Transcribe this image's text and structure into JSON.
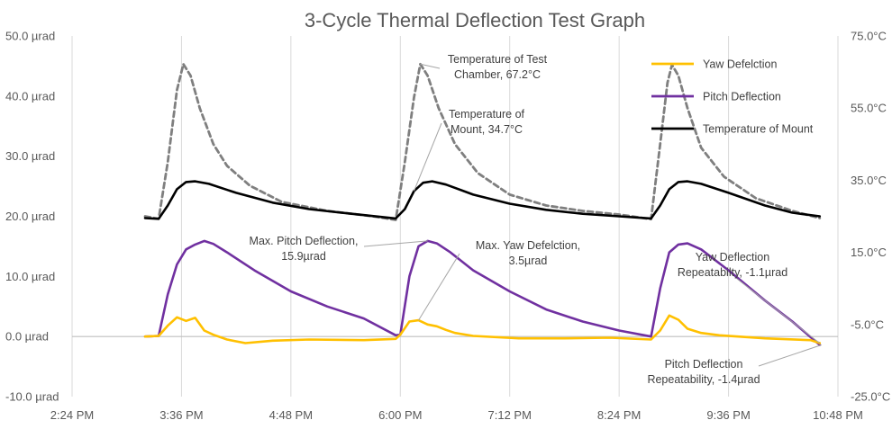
{
  "chart_data": {
    "type": "line",
    "title": "3-Cycle Thermal Deflection Test Graph",
    "x_ticks": [
      "2:24 PM",
      "3:36 PM",
      "4:48 PM",
      "6:00 PM",
      "7:12 PM",
      "8:24 PM",
      "9:36 PM",
      "10:48 PM"
    ],
    "x_range_hours": [
      14.4,
      22.8
    ],
    "y_left": {
      "range": [
        -10,
        50
      ],
      "unit": "µrad",
      "ticks": [
        "-10.0 µrad",
        "0.0 µrad",
        "10.0 µrad",
        "20.0 µrad",
        "30.0 µrad",
        "40.0 µrad",
        "50.0 µrad"
      ]
    },
    "y_right": {
      "range": [
        -25,
        75
      ],
      "unit": "°C",
      "ticks": [
        "-25.0°C",
        "-5.0°C",
        "15.0°C",
        "35.0°C",
        "55.0°C",
        "75.0°C"
      ]
    },
    "grid": "vertical",
    "legend_position": "top-right",
    "legend": [
      {
        "label": "Yaw Defelction",
        "color": "#FFC000",
        "dash": false
      },
      {
        "label": "Pitch Deflection",
        "color": "#7030A0",
        "dash": false
      },
      {
        "label": "Temperature of Mount",
        "color": "#000000",
        "dash": false
      }
    ],
    "series": [
      {
        "name": "Yaw Defelction",
        "axis": "left",
        "color": "#FFC000",
        "points": [
          [
            15.2,
            0
          ],
          [
            15.35,
            0.1
          ],
          [
            15.45,
            1.8
          ],
          [
            15.55,
            3.2
          ],
          [
            15.65,
            2.6
          ],
          [
            15.75,
            3.1
          ],
          [
            15.85,
            1.0
          ],
          [
            15.95,
            0.3
          ],
          [
            16.1,
            -0.5
          ],
          [
            16.3,
            -1.1
          ],
          [
            16.6,
            -0.7
          ],
          [
            17.0,
            -0.5
          ],
          [
            17.6,
            -0.6
          ],
          [
            17.95,
            -0.4
          ],
          [
            18.0,
            0.3
          ],
          [
            18.1,
            2.5
          ],
          [
            18.2,
            2.7
          ],
          [
            18.3,
            2.0
          ],
          [
            18.4,
            1.7
          ],
          [
            18.5,
            1.1
          ],
          [
            18.6,
            0.6
          ],
          [
            18.8,
            0.1
          ],
          [
            19.3,
            -0.3
          ],
          [
            19.8,
            -0.3
          ],
          [
            20.3,
            -0.2
          ],
          [
            20.75,
            -0.5
          ],
          [
            20.85,
            1.0
          ],
          [
            20.95,
            3.5
          ],
          [
            21.05,
            2.8
          ],
          [
            21.15,
            1.3
          ],
          [
            21.3,
            0.6
          ],
          [
            21.5,
            0.2
          ],
          [
            22.0,
            -0.3
          ],
          [
            22.5,
            -0.6
          ],
          [
            22.6,
            -1.1
          ]
        ]
      },
      {
        "name": "Pitch Deflection",
        "axis": "left",
        "color": "#7030A0",
        "points": [
          [
            15.2,
            0
          ],
          [
            15.35,
            0.1
          ],
          [
            15.45,
            7.0
          ],
          [
            15.55,
            12.0
          ],
          [
            15.65,
            14.5
          ],
          [
            15.75,
            15.3
          ],
          [
            15.85,
            15.9
          ],
          [
            15.95,
            15.4
          ],
          [
            16.1,
            14.0
          ],
          [
            16.4,
            11.0
          ],
          [
            16.8,
            7.5
          ],
          [
            17.2,
            5.0
          ],
          [
            17.6,
            3.0
          ],
          [
            17.95,
            0.2
          ],
          [
            18.0,
            0.3
          ],
          [
            18.1,
            10.0
          ],
          [
            18.2,
            15.0
          ],
          [
            18.3,
            15.9
          ],
          [
            18.4,
            15.5
          ],
          [
            18.55,
            14.0
          ],
          [
            18.8,
            11.0
          ],
          [
            19.2,
            7.5
          ],
          [
            19.6,
            4.5
          ],
          [
            20.0,
            2.5
          ],
          [
            20.4,
            1.0
          ],
          [
            20.75,
            0.0
          ],
          [
            20.85,
            8.0
          ],
          [
            20.95,
            14.0
          ],
          [
            21.05,
            15.3
          ],
          [
            21.15,
            15.5
          ],
          [
            21.3,
            14.5
          ],
          [
            21.6,
            11.0
          ],
          [
            22.0,
            6.0
          ],
          [
            22.3,
            2.5
          ],
          [
            22.6,
            -1.4
          ]
        ]
      },
      {
        "name": "Temperature of Mount",
        "axis": "right",
        "color": "#000000",
        "points": [
          [
            15.2,
            24.5
          ],
          [
            15.35,
            24.3
          ],
          [
            15.45,
            28.0
          ],
          [
            15.55,
            32.5
          ],
          [
            15.65,
            34.5
          ],
          [
            15.75,
            34.7
          ],
          [
            15.9,
            34.0
          ],
          [
            16.2,
            31.5
          ],
          [
            16.6,
            28.8
          ],
          [
            17.0,
            27.0
          ],
          [
            17.5,
            25.6
          ],
          [
            17.95,
            24.4
          ],
          [
            18.05,
            27.0
          ],
          [
            18.15,
            32.0
          ],
          [
            18.25,
            34.3
          ],
          [
            18.35,
            34.7
          ],
          [
            18.5,
            33.8
          ],
          [
            18.8,
            31.0
          ],
          [
            19.2,
            28.5
          ],
          [
            19.6,
            26.8
          ],
          [
            20.0,
            25.7
          ],
          [
            20.4,
            25.0
          ],
          [
            20.75,
            24.4
          ],
          [
            20.85,
            28.0
          ],
          [
            20.95,
            32.5
          ],
          [
            21.05,
            34.5
          ],
          [
            21.15,
            34.7
          ],
          [
            21.3,
            34.0
          ],
          [
            21.6,
            31.5
          ],
          [
            22.0,
            28.0
          ],
          [
            22.3,
            26.0
          ],
          [
            22.6,
            25.0
          ]
        ]
      },
      {
        "name": "Temperature of Test Chamber",
        "axis": "right",
        "color": "#7F7F7F",
        "dash": true,
        "points": [
          [
            15.2,
            25.0
          ],
          [
            15.35,
            24.3
          ],
          [
            15.45,
            40.0
          ],
          [
            15.55,
            60.0
          ],
          [
            15.62,
            67.2
          ],
          [
            15.7,
            64.0
          ],
          [
            15.8,
            55.0
          ],
          [
            15.95,
            45.0
          ],
          [
            16.1,
            39.0
          ],
          [
            16.35,
            33.5
          ],
          [
            16.7,
            29.0
          ],
          [
            17.2,
            26.5
          ],
          [
            17.7,
            25.0
          ],
          [
            17.95,
            24.0
          ],
          [
            18.05,
            40.0
          ],
          [
            18.15,
            58.0
          ],
          [
            18.22,
            67.2
          ],
          [
            18.3,
            64.0
          ],
          [
            18.42,
            55.0
          ],
          [
            18.6,
            45.0
          ],
          [
            18.85,
            37.0
          ],
          [
            19.2,
            31.0
          ],
          [
            19.6,
            28.0
          ],
          [
            20.0,
            26.5
          ],
          [
            20.4,
            25.5
          ],
          [
            20.75,
            24.2
          ],
          [
            20.85,
            45.0
          ],
          [
            20.93,
            62.0
          ],
          [
            20.98,
            67.0
          ],
          [
            21.05,
            64.0
          ],
          [
            21.15,
            55.0
          ],
          [
            21.3,
            44.0
          ],
          [
            21.55,
            36.0
          ],
          [
            21.9,
            30.0
          ],
          [
            22.3,
            26.5
          ],
          [
            22.6,
            24.5
          ]
        ]
      }
    ],
    "annotations": [
      {
        "id": "chamber",
        "lines": [
          "Temperature of Test",
          "Chamber, 67.2°C"
        ]
      },
      {
        "id": "mount",
        "lines": [
          "Temperature of",
          "Mount, 34.7°C"
        ]
      },
      {
        "id": "max_pitch",
        "lines": [
          "Max. Pitch Deflection,",
          "15.9µrad"
        ]
      },
      {
        "id": "max_yaw",
        "lines": [
          "Max. Yaw Defelction,",
          "3.5µrad"
        ]
      },
      {
        "id": "yaw_rep",
        "lines": [
          "Yaw Deflection",
          "Repeatabilty, -1.1µrad"
        ]
      },
      {
        "id": "pitch_rep",
        "lines": [
          "Pitch Deflection",
          "Repeatability, -1.4µrad"
        ]
      }
    ]
  }
}
